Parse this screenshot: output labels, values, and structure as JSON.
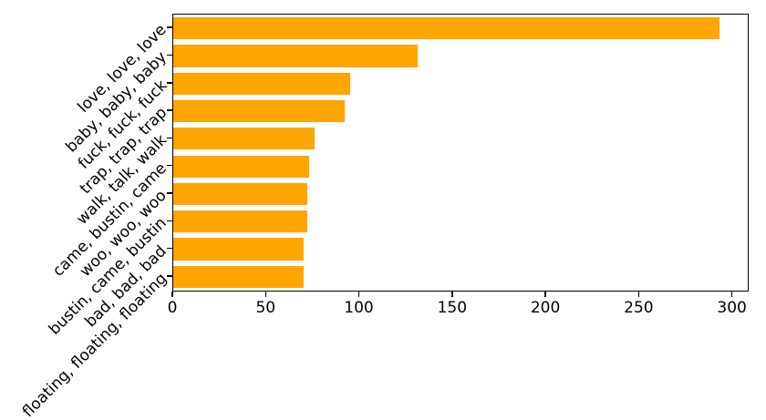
{
  "chart_data": {
    "type": "bar",
    "orientation": "horizontal",
    "title": "",
    "xlabel": "",
    "ylabel": "",
    "categories": [
      "love, love, love",
      "baby, baby, baby",
      "fuck, fuck, fuck",
      "trap, trap, trap",
      "walk, talk, walk",
      "came, bustin, came",
      "woo, woo, woo",
      "bustin, came, bustin",
      "bad, bad, bad",
      "floating, floating, floating"
    ],
    "values": [
      293,
      131,
      95,
      92,
      76,
      73,
      72,
      72,
      70,
      70
    ],
    "x_ticks": [
      0,
      50,
      100,
      150,
      200,
      250,
      300
    ],
    "xlim": [
      0,
      308
    ],
    "grid": false,
    "legend": null,
    "bar_color": "#FFA500",
    "y_label_rotation_deg": 45
  }
}
